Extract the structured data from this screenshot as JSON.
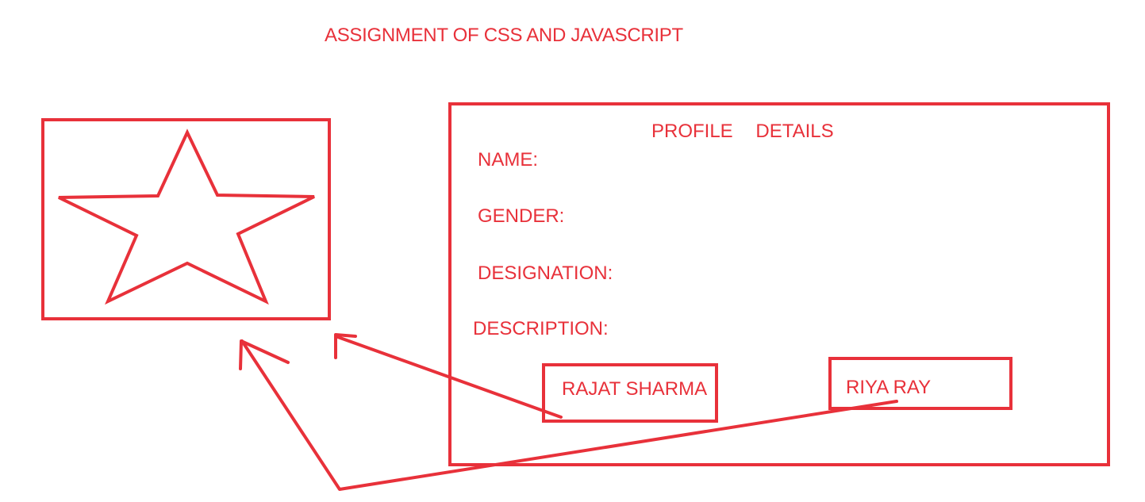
{
  "heading": "ASSIGNMENT OF CSS AND JAVASCRIPT",
  "image_panel": {
    "icon": "star-icon"
  },
  "profile": {
    "title": "PROFILE DETAILS",
    "fields": {
      "name": "NAME:",
      "gender": "GENDER:",
      "designation": "DESIGNATION:",
      "description": "DESCRIPTION:"
    },
    "buttons": {
      "first": "RAJAT SHARMA",
      "second": "RIYA RAY"
    }
  },
  "colors": {
    "stroke": "#e8313a",
    "background": "#ffffff"
  }
}
